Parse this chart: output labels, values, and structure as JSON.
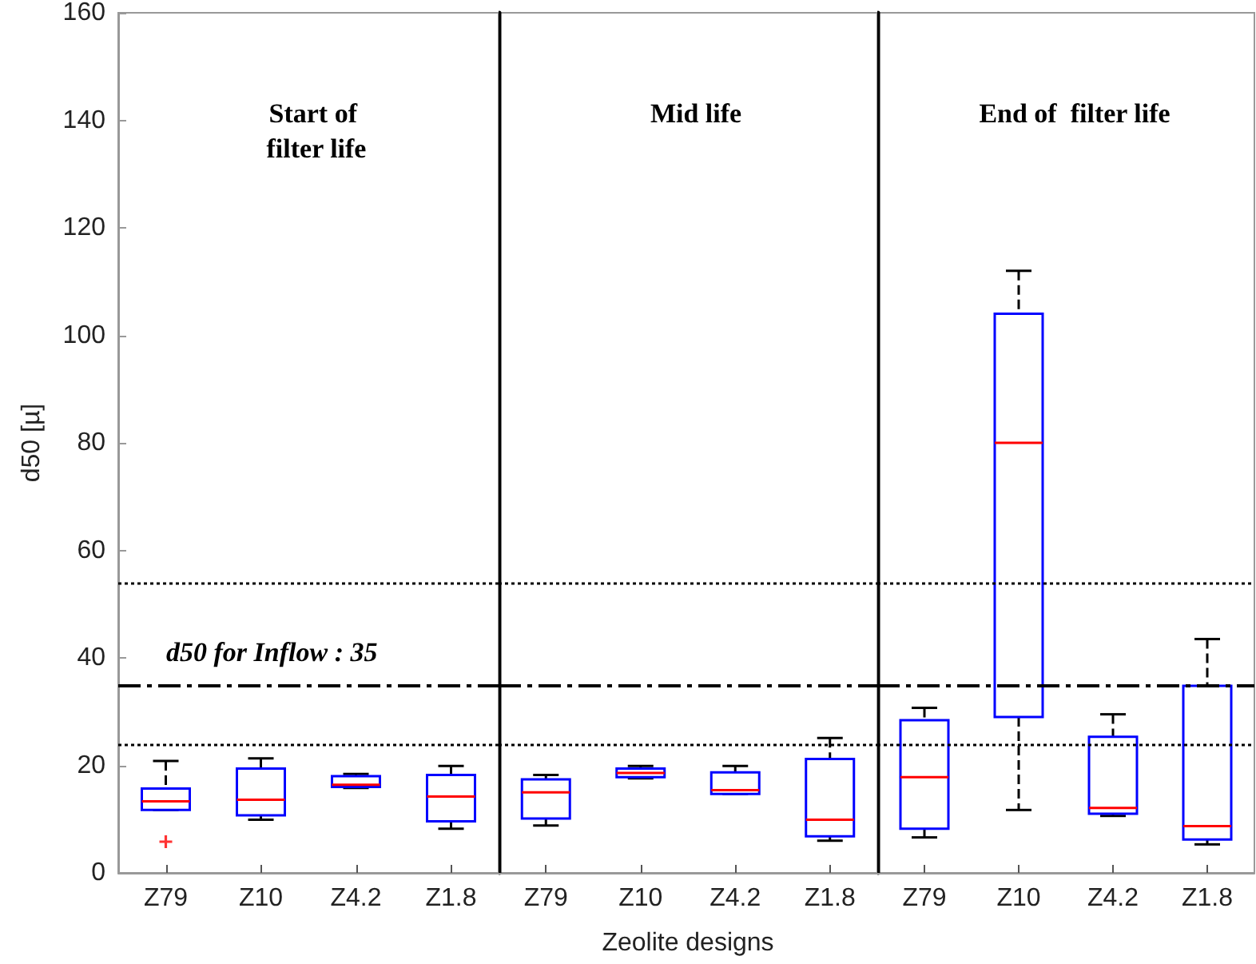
{
  "chart_data": [
    {
      "type": "box",
      "title": "Start of filter life",
      "ylabel": "d50 [µ]",
      "categories": [
        "Z79",
        "Z10",
        "Z4.2",
        "Z1.8"
      ],
      "ylim": [
        0,
        160
      ],
      "yticks": [
        0,
        20,
        40,
        60,
        80,
        100,
        120,
        140,
        160
      ],
      "grid": false,
      "series": [
        {
          "color": "#0000ff",
          "boxes": [
            {
              "low": 11.7,
              "q1": 11.7,
              "median": 13.3,
              "q3": 15.7,
              "high": 20.8,
              "outliers": [
                5.8
              ]
            },
            {
              "low": 9.9,
              "q1": 10.7,
              "median": 13.6,
              "q3": 19.4,
              "high": 21.3
            },
            {
              "low": 15.8,
              "q1": 16.0,
              "median": 16.4,
              "q3": 18.0,
              "high": 18.4
            },
            {
              "low": 8.2,
              "q1": 9.6,
              "median": 14.2,
              "q3": 18.2,
              "high": 19.9
            }
          ]
        }
      ],
      "ref_lines": [
        {
          "axis": "y",
          "value": 54,
          "line_style": "dotted"
        },
        {
          "axis": "y",
          "value": 24,
          "line_style": "dotted"
        },
        {
          "axis": "y",
          "value": 35,
          "line_style": "dashed",
          "label": "d50 for Inflow : 35"
        }
      ]
    },
    {
      "type": "box",
      "title": "Mid life",
      "xlabel": "Zeolite designs",
      "categories": [
        "Z79",
        "Z10",
        "Z4.2",
        "Z1.8"
      ],
      "ylim": [
        0,
        160
      ],
      "yticks": [
        0,
        20,
        40,
        60,
        80,
        100,
        120,
        140,
        160
      ],
      "tick_labels": "x",
      "grid": false,
      "series": [
        {
          "color": "#0000ff",
          "boxes": [
            {
              "low": 8.8,
              "q1": 10.1,
              "median": 15.0,
              "q3": 17.4,
              "high": 18.2
            },
            {
              "low": 17.6,
              "q1": 17.8,
              "median": 18.6,
              "q3": 19.4,
              "high": 19.9
            },
            {
              "low": 14.7,
              "q1": 14.7,
              "median": 15.4,
              "q3": 18.7,
              "high": 19.9
            },
            {
              "low": 6.0,
              "q1": 6.8,
              "median": 9.9,
              "q3": 21.2,
              "high": 25.1
            }
          ]
        }
      ],
      "ref_lines": [
        {
          "axis": "y",
          "value": 54,
          "line_style": "dotted"
        },
        {
          "axis": "y",
          "value": 24,
          "line_style": "dotted"
        },
        {
          "axis": "y",
          "value": 35,
          "line_style": "dashed"
        }
      ]
    },
    {
      "type": "box",
      "title": "End of  filter life",
      "categories": [
        "Z79",
        "Z10",
        "Z4.2",
        "Z1.8"
      ],
      "ylim": [
        0,
        160
      ],
      "yticks": [
        0,
        20,
        40,
        60,
        80,
        100,
        120,
        140,
        160
      ],
      "tick_labels": "x",
      "grid": false,
      "series": [
        {
          "color": "#0000ff",
          "boxes": [
            {
              "low": 6.6,
              "q1": 8.2,
              "median": 17.8,
              "q3": 28.4,
              "high": 30.7
            },
            {
              "low": 11.7,
              "q1": 29,
              "median": 80,
              "q3": 104,
              "high": 112
            },
            {
              "low": 10.6,
              "q1": 11.0,
              "median": 12.1,
              "q3": 25.3,
              "high": 29.5
            },
            {
              "low": 5.3,
              "q1": 6.2,
              "median": 8.7,
              "q3": 34.8,
              "high": 43.5
            }
          ]
        }
      ],
      "ref_lines": [
        {
          "axis": "y",
          "value": 54,
          "line_style": "dotted"
        },
        {
          "axis": "y",
          "value": 24,
          "line_style": "dotted"
        },
        {
          "axis": "y",
          "value": 35,
          "line_style": "dashed"
        }
      ]
    }
  ]
}
